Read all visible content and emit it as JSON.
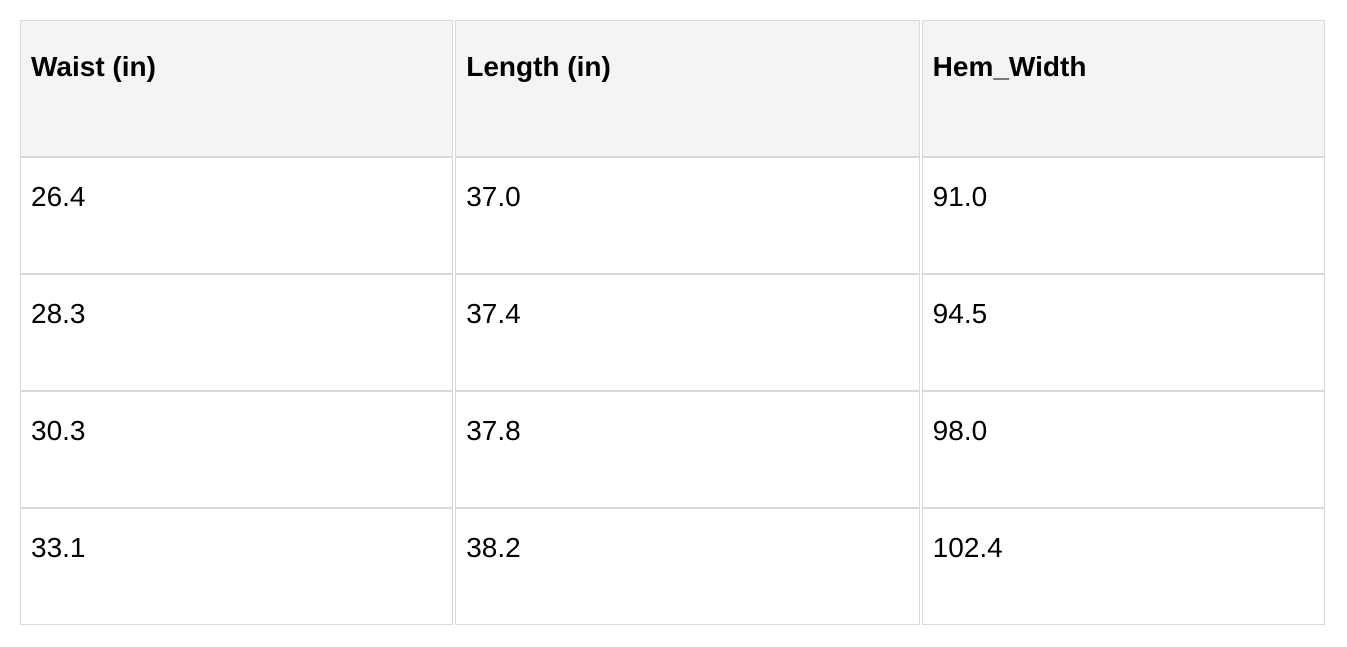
{
  "table": {
    "columns": [
      {
        "label": "Waist (in)"
      },
      {
        "label": "Length (in)"
      },
      {
        "label": "Hem_Width"
      }
    ],
    "rows": [
      [
        "26.4",
        "37.0",
        "91.0"
      ],
      [
        "28.3",
        "37.4",
        "94.5"
      ],
      [
        "30.3",
        "37.8",
        "98.0"
      ],
      [
        "33.1",
        "38.2",
        "102.4"
      ]
    ]
  },
  "colors": {
    "header_bg": "#f4f4f4",
    "cell_bg": "#ffffff",
    "border": "#d9d9d9",
    "text": "#000000",
    "page_bg": "#ffffff"
  },
  "chart_data": {
    "type": "table",
    "columns": [
      "Waist (in)",
      "Length (in)",
      "Hem_Width"
    ],
    "rows": [
      [
        26.4,
        37.0,
        91.0
      ],
      [
        28.3,
        37.4,
        94.5
      ],
      [
        30.3,
        37.8,
        98.0
      ],
      [
        33.1,
        38.2,
        102.4
      ]
    ],
    "title": "",
    "legend_position": "none",
    "grid": true
  }
}
